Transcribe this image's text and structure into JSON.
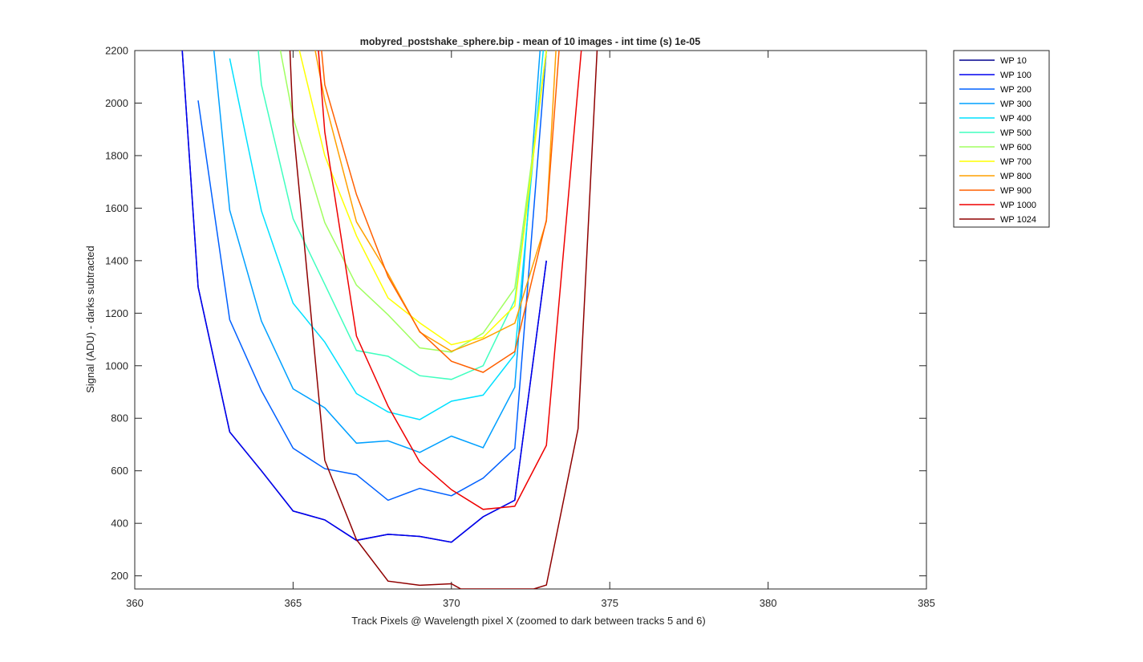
{
  "chart_data": {
    "type": "line",
    "title": "mobyred_postshake_sphere.bip - mean of 10 images - int time (s) 1e-05",
    "xlabel": "Track Pixels @ Wavelength pixel X  (zoomed to dark between tracks 5 and 6)",
    "ylabel": "Signal (ADU) - darks subtracted",
    "xlim": [
      360,
      385
    ],
    "ylim": [
      150,
      2200
    ],
    "xticks": [
      360,
      365,
      370,
      375,
      380,
      385
    ],
    "yticks": [
      200,
      400,
      600,
      800,
      1000,
      1200,
      1400,
      1600,
      1800,
      2000,
      2200
    ],
    "grid": false,
    "legend_position": "outside-top-right",
    "series": [
      {
        "name": "WP 10",
        "color": "#00008f",
        "x": [
          361.5,
          362,
          363,
          364,
          365,
          366,
          367,
          368,
          369,
          370,
          371,
          372,
          373
        ],
        "y": [
          2200,
          1300,
          748,
          600,
          447,
          413,
          335,
          358,
          350,
          328,
          425,
          488,
          1400
        ]
      },
      {
        "name": "WP 100",
        "color": "#0000ef",
        "x": [
          361.5,
          362,
          363,
          364,
          365,
          366,
          367,
          368,
          369,
          370,
          371,
          372,
          373
        ],
        "y": [
          2200,
          1300,
          748,
          600,
          447,
          413,
          335,
          358,
          350,
          328,
          425,
          488,
          1400
        ]
      },
      {
        "name": "WP 200",
        "color": "#0060ff",
        "x": [
          362,
          363,
          364,
          365,
          366,
          367,
          368,
          369,
          370,
          371,
          372,
          373
        ],
        "y": [
          2010,
          1175,
          905,
          686,
          608,
          585,
          488,
          533,
          505,
          572,
          685,
          2200
        ]
      },
      {
        "name": "WP 300",
        "color": "#00a0ff",
        "x": [
          362.5,
          363,
          364,
          365,
          366,
          367,
          368,
          369,
          370,
          371,
          372,
          372.8
        ],
        "y": [
          2200,
          1592,
          1170,
          912,
          840,
          705,
          714,
          670,
          732,
          688,
          918,
          2200
        ]
      },
      {
        "name": "WP 400",
        "color": "#00e0ff",
        "x": [
          363,
          364,
          365,
          366,
          367,
          368,
          369,
          370,
          371,
          372,
          372.9
        ],
        "y": [
          2170,
          1590,
          1238,
          1090,
          894,
          824,
          795,
          865,
          888,
          1043,
          2200
        ]
      },
      {
        "name": "WP 500",
        "color": "#40ffbf",
        "x": [
          363.9,
          364,
          365,
          366,
          367,
          368,
          369,
          370,
          371,
          372,
          373
        ],
        "y": [
          2200,
          2070,
          1560,
          1310,
          1058,
          1036,
          962,
          948,
          1000,
          1250,
          2200
        ]
      },
      {
        "name": "WP 600",
        "color": "#a0ff60",
        "x": [
          364.6,
          365,
          366,
          367,
          368,
          369,
          370,
          371,
          372,
          373
        ],
        "y": [
          2200,
          1945,
          1545,
          1307,
          1194,
          1068,
          1052,
          1124,
          1295,
          2200
        ]
      },
      {
        "name": "WP 700",
        "color": "#ffff00",
        "x": [
          365.2,
          366,
          367,
          368,
          369,
          370,
          371,
          372,
          373
        ],
        "y": [
          2200,
          1800,
          1495,
          1258,
          1163,
          1080,
          1108,
          1228,
          2200
        ]
      },
      {
        "name": "WP 800",
        "color": "#ffa000",
        "x": [
          365.7,
          366,
          367,
          368,
          369,
          370,
          371,
          372,
          373,
          373.3
        ],
        "y": [
          2200,
          2010,
          1548,
          1350,
          1128,
          1055,
          1102,
          1162,
          1550,
          2200
        ]
      },
      {
        "name": "WP 900",
        "color": "#ff6000",
        "x": [
          365.9,
          366,
          367,
          368,
          369,
          370,
          371,
          372,
          373,
          373.4
        ],
        "y": [
          2200,
          2070,
          1652,
          1339,
          1130,
          1017,
          975,
          1054,
          1555,
          2200
        ]
      },
      {
        "name": "WP 1000",
        "color": "#ef0000",
        "x": [
          365.8,
          366,
          367,
          368,
          369,
          370,
          371,
          372,
          373,
          374.1
        ],
        "y": [
          2200,
          1890,
          1113,
          846,
          633,
          528,
          453,
          465,
          697,
          2200
        ]
      },
      {
        "name": "WP 1024",
        "color": "#8f0000",
        "x": [
          364.9,
          365,
          366,
          367,
          368,
          369,
          370,
          370.3,
          372.6,
          373,
          374,
          374.6
        ],
        "y": [
          2200,
          1915,
          640,
          338,
          180,
          164,
          170,
          150,
          150,
          165,
          760,
          2200
        ]
      }
    ]
  }
}
